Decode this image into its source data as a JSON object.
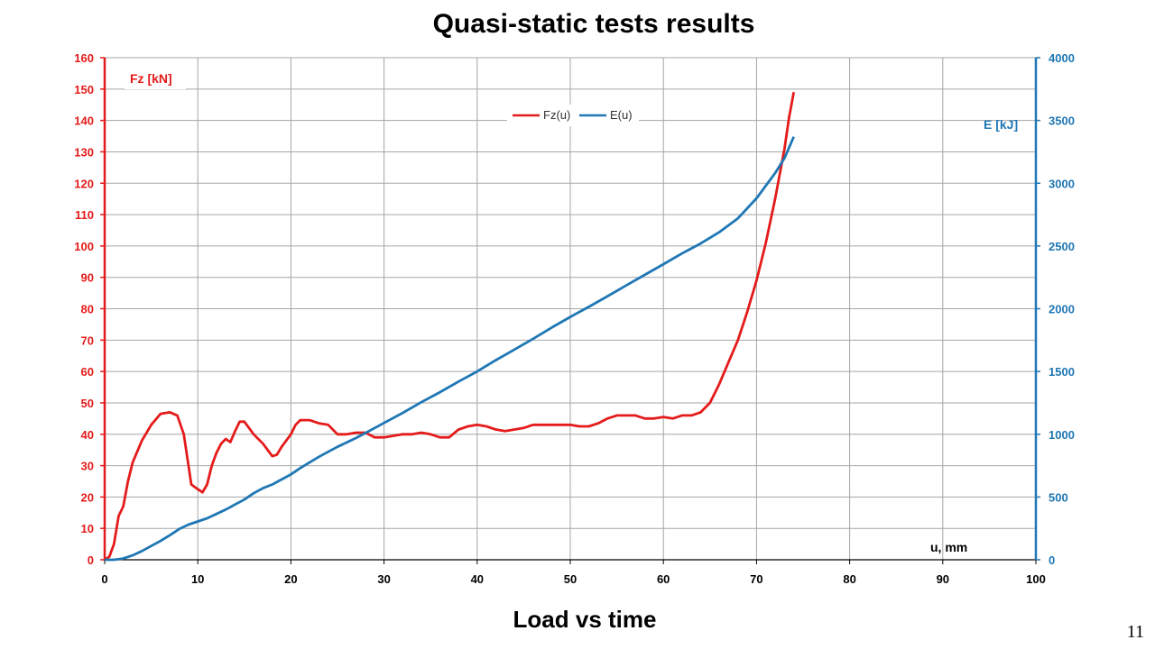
{
  "slide": {
    "title": "Quasi-static tests results",
    "subtitle": "Load vs time",
    "page_number": "11"
  },
  "chart_data": {
    "type": "line",
    "title": "Quasi-static tests results",
    "xlabel": "u, mm",
    "ylabel_left": "Fz [kN]",
    "ylabel_right": "E [kJ]",
    "xlim": [
      0,
      100
    ],
    "ylim_left": [
      0,
      160
    ],
    "ylim_right": [
      0,
      4000
    ],
    "x_ticks": [
      0,
      10,
      20,
      30,
      40,
      50,
      60,
      70,
      80,
      90,
      100
    ],
    "y_ticks_left": [
      0,
      10,
      20,
      30,
      40,
      50,
      60,
      70,
      80,
      90,
      100,
      110,
      120,
      130,
      140,
      150,
      160
    ],
    "y_ticks_right": [
      0,
      500,
      1000,
      1500,
      2000,
      2500,
      3000,
      3500,
      4000
    ],
    "grid": true,
    "legend_position": "top-center",
    "series": [
      {
        "name": "Fz(u)",
        "axis": "left",
        "color": "#e41b1b",
        "points": [
          [
            0,
            0
          ],
          [
            0.5,
            1
          ],
          [
            1,
            5
          ],
          [
            1.5,
            14
          ],
          [
            2,
            17
          ],
          [
            2.5,
            25
          ],
          [
            3,
            31
          ],
          [
            4,
            38
          ],
          [
            5,
            43
          ],
          [
            6,
            46.5
          ],
          [
            7,
            47
          ],
          [
            7.8,
            46
          ],
          [
            8.5,
            40
          ],
          [
            9,
            30
          ],
          [
            9.3,
            24
          ],
          [
            10,
            22.5
          ],
          [
            10.5,
            21.5
          ],
          [
            11,
            24
          ],
          [
            11.5,
            30
          ],
          [
            12,
            34
          ],
          [
            12.5,
            37
          ],
          [
            13,
            38.5
          ],
          [
            13.5,
            37.5
          ],
          [
            14,
            41
          ],
          [
            14.5,
            44
          ],
          [
            15,
            44
          ],
          [
            15.5,
            42
          ],
          [
            16,
            40
          ],
          [
            17,
            37
          ],
          [
            18,
            33
          ],
          [
            18.5,
            33.5
          ],
          [
            19,
            36
          ],
          [
            20,
            40
          ],
          [
            20.5,
            43
          ],
          [
            21,
            44.5
          ],
          [
            22,
            44.5
          ],
          [
            23,
            43.5
          ],
          [
            24,
            43
          ],
          [
            25,
            40
          ],
          [
            26,
            40
          ],
          [
            27,
            40.5
          ],
          [
            28,
            40.5
          ],
          [
            29,
            39
          ],
          [
            30,
            39
          ],
          [
            31,
            39.5
          ],
          [
            32,
            40
          ],
          [
            33,
            40
          ],
          [
            34,
            40.5
          ],
          [
            35,
            40
          ],
          [
            36,
            39
          ],
          [
            37,
            39
          ],
          [
            38,
            41.5
          ],
          [
            39,
            42.5
          ],
          [
            40,
            43
          ],
          [
            41,
            42.5
          ],
          [
            42,
            41.5
          ],
          [
            43,
            41
          ],
          [
            44,
            41.5
          ],
          [
            45,
            42
          ],
          [
            46,
            43
          ],
          [
            47,
            43
          ],
          [
            48,
            43
          ],
          [
            49,
            43
          ],
          [
            50,
            43
          ],
          [
            51,
            42.5
          ],
          [
            52,
            42.5
          ],
          [
            53,
            43.5
          ],
          [
            54,
            45
          ],
          [
            55,
            46
          ],
          [
            56,
            46
          ],
          [
            57,
            46
          ],
          [
            58,
            45
          ],
          [
            59,
            45
          ],
          [
            60,
            45.5
          ],
          [
            61,
            45
          ],
          [
            62,
            46
          ],
          [
            63,
            46
          ],
          [
            64,
            47
          ],
          [
            65,
            50
          ],
          [
            66,
            56
          ],
          [
            67,
            63
          ],
          [
            68,
            70
          ],
          [
            69,
            79
          ],
          [
            70,
            89
          ],
          [
            71,
            101
          ],
          [
            72,
            115
          ],
          [
            73,
            131
          ],
          [
            73.5,
            141
          ],
          [
            74,
            149
          ]
        ]
      },
      {
        "name": "E(u)",
        "axis": "right",
        "color": "#1f77b4",
        "points": [
          [
            0,
            0
          ],
          [
            1,
            0
          ],
          [
            2,
            10
          ],
          [
            3,
            35
          ],
          [
            4,
            70
          ],
          [
            5,
            110
          ],
          [
            6,
            150
          ],
          [
            7,
            195
          ],
          [
            8,
            245
          ],
          [
            9,
            280
          ],
          [
            10,
            305
          ],
          [
            11,
            330
          ],
          [
            12,
            365
          ],
          [
            13,
            400
          ],
          [
            14,
            440
          ],
          [
            15,
            480
          ],
          [
            16,
            530
          ],
          [
            17,
            570
          ],
          [
            18,
            600
          ],
          [
            19,
            640
          ],
          [
            20,
            680
          ],
          [
            21,
            730
          ],
          [
            22,
            775
          ],
          [
            23,
            820
          ],
          [
            24,
            860
          ],
          [
            25,
            900
          ],
          [
            26,
            935
          ],
          [
            27,
            970
          ],
          [
            28,
            1010
          ],
          [
            29,
            1050
          ],
          [
            30,
            1090
          ],
          [
            32,
            1170
          ],
          [
            34,
            1255
          ],
          [
            36,
            1335
          ],
          [
            38,
            1420
          ],
          [
            40,
            1500
          ],
          [
            42,
            1590
          ],
          [
            44,
            1675
          ],
          [
            46,
            1760
          ],
          [
            48,
            1850
          ],
          [
            50,
            1935
          ],
          [
            52,
            2015
          ],
          [
            54,
            2100
          ],
          [
            56,
            2185
          ],
          [
            58,
            2270
          ],
          [
            60,
            2355
          ],
          [
            62,
            2440
          ],
          [
            64,
            2520
          ],
          [
            66,
            2610
          ],
          [
            68,
            2720
          ],
          [
            70,
            2880
          ],
          [
            72,
            3080
          ],
          [
            73,
            3200
          ],
          [
            74,
            3370
          ]
        ]
      }
    ]
  }
}
